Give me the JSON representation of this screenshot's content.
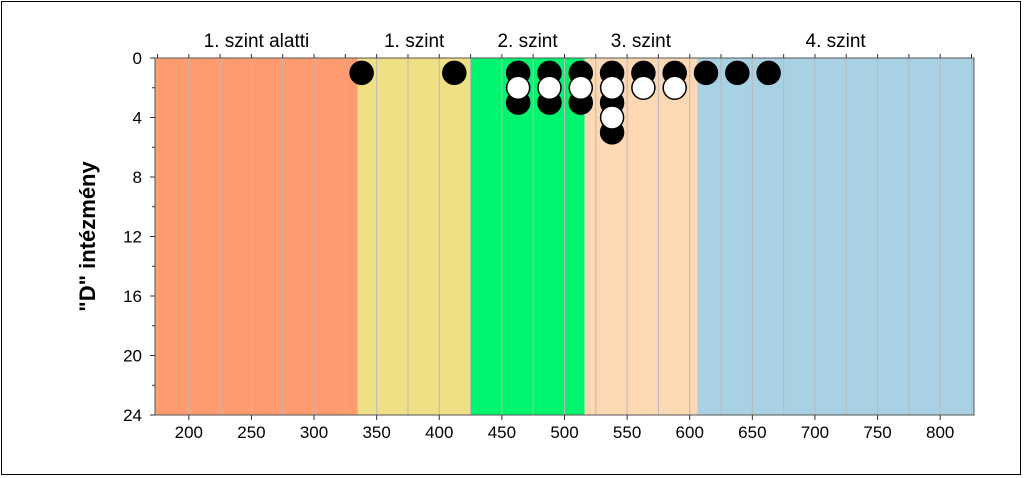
{
  "chart_data": {
    "type": "scatter",
    "title": "",
    "xlabel": "",
    "ylabel": "\"D\" intézmény",
    "xlim": [
      173,
      827
    ],
    "ylim": [
      0,
      24
    ],
    "y_inverted": true,
    "x_ticks": [
      200,
      250,
      300,
      350,
      400,
      450,
      500,
      550,
      600,
      650,
      700,
      750,
      800
    ],
    "y_ticks": [
      0,
      4,
      8,
      12,
      16,
      20,
      24
    ],
    "bands": [
      {
        "label": "1. szint alatti",
        "from": 173,
        "to": 335,
        "color": "#FF9B6E"
      },
      {
        "label": "1. szint",
        "from": 335,
        "to": 425,
        "color": "#EFE085"
      },
      {
        "label": "2. szint",
        "from": 425,
        "to": 516,
        "color": "#00F56E"
      },
      {
        "label": "3. szint",
        "from": 516,
        "to": 606,
        "color": "#FDD8B3"
      },
      {
        "label": "4. szint",
        "from": 606,
        "to": 827,
        "color": "#A8D2E3"
      }
    ],
    "grid": true,
    "series": [
      {
        "marker": "filled",
        "color": "#000000",
        "points": [
          {
            "x": 338,
            "y": 1
          },
          {
            "x": 412,
            "y": 1
          },
          {
            "x": 463,
            "y": 1
          },
          {
            "x": 463,
            "y": 3
          },
          {
            "x": 488,
            "y": 1
          },
          {
            "x": 488,
            "y": 3
          },
          {
            "x": 513,
            "y": 1
          },
          {
            "x": 513,
            "y": 3
          },
          {
            "x": 538,
            "y": 1
          },
          {
            "x": 538,
            "y": 3
          },
          {
            "x": 538,
            "y": 5
          },
          {
            "x": 563,
            "y": 1
          },
          {
            "x": 588,
            "y": 1
          },
          {
            "x": 613,
            "y": 1
          },
          {
            "x": 638,
            "y": 1
          },
          {
            "x": 663,
            "y": 1
          }
        ]
      },
      {
        "marker": "hollow",
        "color": "#ffffff",
        "points": [
          {
            "x": 463,
            "y": 2
          },
          {
            "x": 488,
            "y": 2
          },
          {
            "x": 513,
            "y": 2
          },
          {
            "x": 538,
            "y": 2
          },
          {
            "x": 538,
            "y": 4
          },
          {
            "x": 563,
            "y": 2
          },
          {
            "x": 588,
            "y": 2
          }
        ]
      }
    ]
  }
}
